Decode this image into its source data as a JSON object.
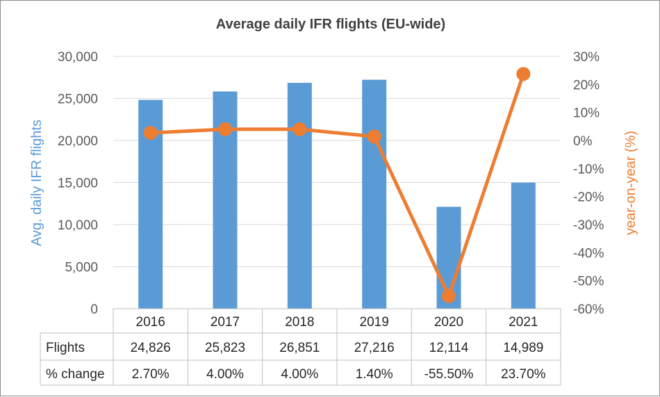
{
  "chart_data": {
    "type": "bar",
    "title": "Average daily IFR flights (EU-wide)",
    "categories": [
      "2016",
      "2017",
      "2018",
      "2019",
      "2020",
      "2021"
    ],
    "y_left_label": "Avg. daily IFR flights",
    "y_right_label": "year-on-year (%)",
    "y_left_ticks": [
      "30,000",
      "25,000",
      "20,000",
      "15,000",
      "10,000",
      "5,000",
      "0"
    ],
    "y_right_ticks": [
      "30%",
      "20%",
      "10%",
      "0%",
      "-10%",
      "-20%",
      "-30%",
      "-40%",
      "-50%",
      "-60%"
    ],
    "y_left_range": [
      0,
      30000
    ],
    "y_right_range": [
      -60,
      30
    ],
    "grid": true,
    "series": [
      {
        "name": "Flights",
        "type": "bar",
        "axis": "left",
        "color": "#5b9bd5",
        "values": [
          24826,
          25823,
          26851,
          27216,
          12114,
          14989
        ]
      },
      {
        "name": "% change",
        "type": "line",
        "axis": "right",
        "color": "#ed7d31",
        "values": [
          2.7,
          4.0,
          4.0,
          1.4,
          -55.5,
          23.7
        ]
      }
    ],
    "table": {
      "row_labels": [
        "Flights",
        "% change"
      ],
      "rows": [
        [
          "24,826",
          "25,823",
          "26,851",
          "27,216",
          "12,114",
          "14,989"
        ],
        [
          "2.70%",
          "4.00%",
          "4.00%",
          "1.40%",
          "-55.50%",
          "23.70%"
        ]
      ]
    }
  }
}
